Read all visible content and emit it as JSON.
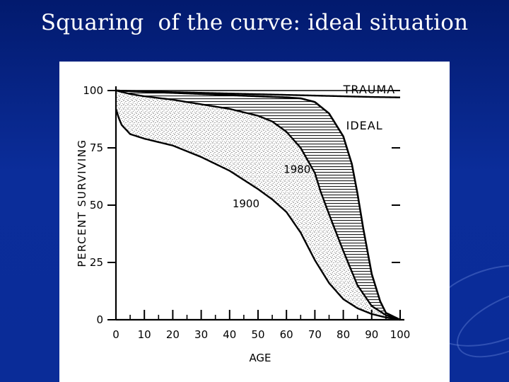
{
  "slide": {
    "title": "Squaring  of the curve: ideal situation",
    "background_color": "#0b2d9a",
    "title_color": "#ffffff"
  },
  "chart_data": {
    "type": "line",
    "title": "",
    "xlabel": "AGE",
    "ylabel": "PERCENT SURVIVING",
    "xlim": [
      0,
      100
    ],
    "ylim": [
      0,
      100
    ],
    "x_ticks": [
      "0",
      "10",
      "20",
      "30",
      "40",
      "50",
      "60",
      "70",
      "80",
      "90",
      "100"
    ],
    "y_ticks": [
      "0",
      "25",
      "50",
      "75",
      "100"
    ],
    "grid": false,
    "series": [
      {
        "name": "TRAUMA",
        "x": [
          0,
          10,
          20,
          30,
          40,
          50,
          60,
          70,
          80,
          90,
          100
        ],
        "y": [
          100,
          99.7,
          99.3,
          99,
          98.7,
          98.4,
          98.1,
          97.8,
          97.5,
          97.2,
          97
        ]
      },
      {
        "name": "IDEAL",
        "x": [
          0,
          10,
          20,
          30,
          40,
          50,
          60,
          65,
          70,
          75,
          80,
          83,
          85,
          87,
          90,
          93,
          95,
          100
        ],
        "y": [
          100,
          99.5,
          99,
          98.5,
          98,
          97.5,
          97,
          96.6,
          95,
          90,
          80,
          68,
          55,
          40,
          20,
          8,
          3,
          0
        ]
      },
      {
        "name": "1980",
        "x": [
          0,
          5,
          10,
          20,
          30,
          40,
          50,
          55,
          60,
          65,
          70,
          72,
          75,
          80,
          85,
          90,
          95,
          100
        ],
        "y": [
          100,
          98.5,
          97.5,
          96,
          94,
          92,
          89,
          86.5,
          82,
          75,
          64,
          56,
          46,
          30,
          15,
          6,
          2,
          0
        ]
      },
      {
        "name": "1900",
        "x": [
          0,
          1,
          2,
          5,
          10,
          15,
          20,
          30,
          40,
          50,
          55,
          60,
          65,
          70,
          75,
          80,
          85,
          90,
          95,
          100
        ],
        "y": [
          92,
          88,
          85,
          81,
          79,
          77.5,
          76,
          71,
          65,
          57,
          52.5,
          47,
          38,
          26,
          16,
          9,
          5,
          2.5,
          1,
          0
        ]
      }
    ],
    "annotations": [
      {
        "text": "TRAUMA",
        "series": "TRAUMA"
      },
      {
        "text": "IDEAL",
        "series": "IDEAL"
      },
      {
        "text": "1980",
        "series": "1980"
      },
      {
        "text": "1900",
        "series": "1900"
      }
    ],
    "shading": [
      {
        "between": [
          "1900",
          "1980"
        ],
        "style": "stipple"
      },
      {
        "between": [
          "1980",
          "IDEAL"
        ],
        "style": "horizontal-hatch"
      }
    ]
  }
}
